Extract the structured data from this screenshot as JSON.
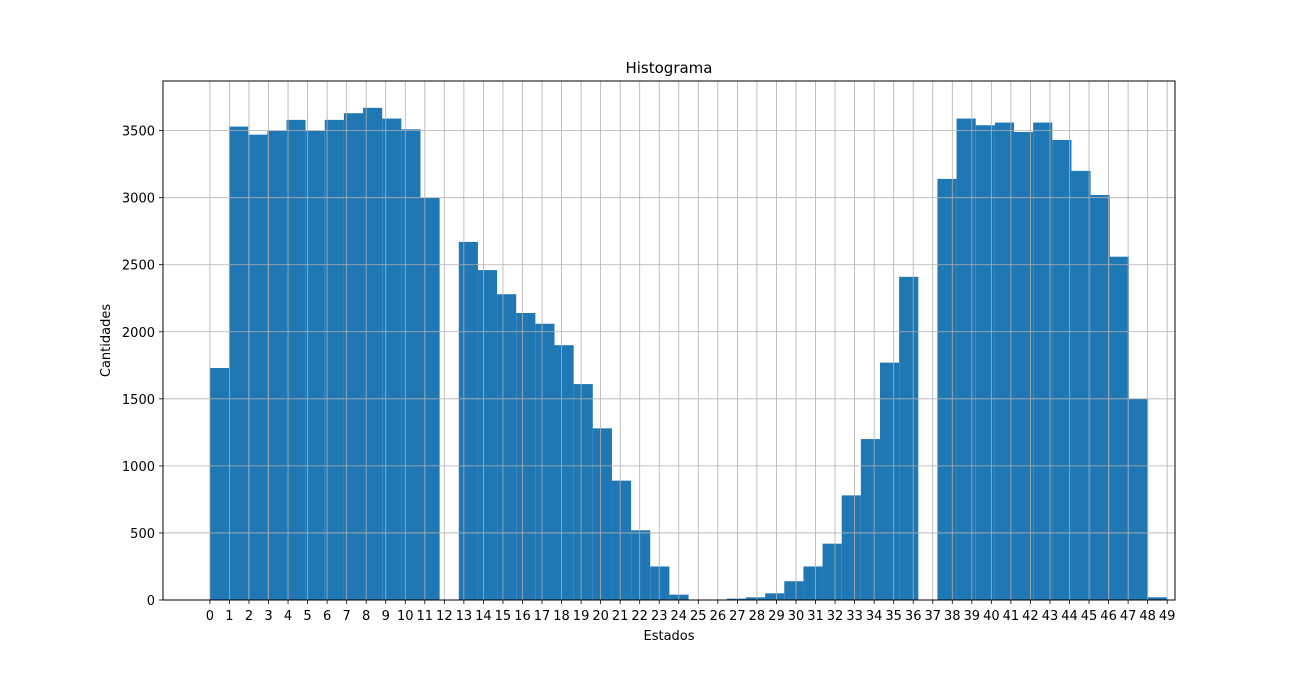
{
  "chart_data": {
    "type": "bar",
    "title": "Histograma",
    "xlabel": "Estados",
    "ylabel": "Cantidades",
    "x": [
      0,
      1,
      2,
      3,
      4,
      5,
      6,
      7,
      8,
      9,
      10,
      11,
      12,
      13,
      14,
      15,
      16,
      17,
      18,
      19,
      20,
      21,
      22,
      23,
      24,
      25,
      26,
      27,
      28,
      29,
      30,
      31,
      32,
      33,
      34,
      35,
      36,
      37,
      38,
      39,
      40,
      41,
      42,
      43,
      44,
      45,
      46,
      47,
      48,
      49
    ],
    "values": [
      1730,
      3530,
      3470,
      3500,
      3580,
      3500,
      3580,
      3630,
      3670,
      3590,
      3510,
      3000,
      0,
      2670,
      2460,
      2280,
      2140,
      2060,
      1900,
      1610,
      1280,
      890,
      520,
      250,
      40,
      0,
      0,
      10,
      20,
      50,
      140,
      250,
      420,
      780,
      1200,
      1770,
      2410,
      0,
      3140,
      3590,
      3540,
      3560,
      3490,
      3560,
      3430,
      3200,
      3020,
      2560,
      1500,
      20
    ],
    "bins_note": "",
    "xlim": [
      -2.4,
      49.4
    ],
    "ylim": [
      0,
      3870
    ],
    "yticks": [
      0,
      500,
      1000,
      1500,
      2000,
      2500,
      3000,
      3500
    ],
    "xticks": [
      0,
      1,
      2,
      3,
      4,
      5,
      6,
      7,
      8,
      9,
      10,
      11,
      12,
      13,
      14,
      15,
      16,
      17,
      18,
      19,
      20,
      21,
      22,
      23,
      24,
      25,
      26,
      27,
      28,
      29,
      30,
      31,
      32,
      33,
      34,
      35,
      36,
      37,
      38,
      39,
      40,
      41,
      42,
      43,
      44,
      45,
      46,
      47,
      48,
      49
    ],
    "grid": true,
    "bar_color": "#1f77b4",
    "grid_color": "#b0b0b0"
  }
}
